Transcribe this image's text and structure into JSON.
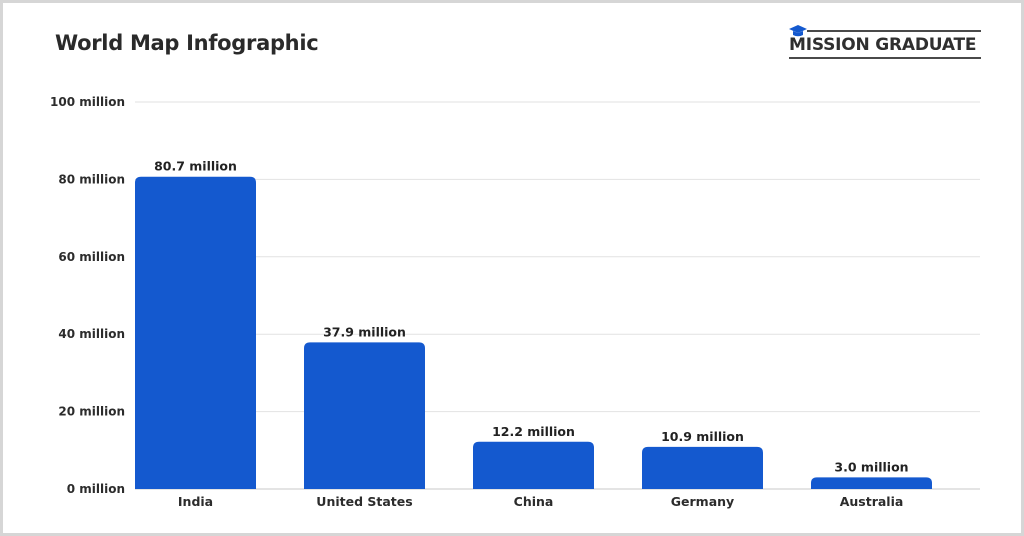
{
  "header": {
    "title": "World Map Infographic",
    "logo_text": "MISSION GRADUATE",
    "logo_icon": "graduation-cap-icon"
  },
  "colors": {
    "bar": "#1459cf",
    "grid": "#e2e2e2",
    "text": "#2c2c2c"
  },
  "chart_data": {
    "type": "bar",
    "title": "World Map Infographic",
    "categories": [
      "India",
      "United States",
      "China",
      "Germany",
      "Australia"
    ],
    "values": [
      80.7,
      37.9,
      12.2,
      10.9,
      3.0
    ],
    "data_labels": [
      "80.7 million",
      "37.9 million",
      "12.2 million",
      "10.9 million",
      "3.0 million"
    ],
    "y_ticks": [
      0,
      20,
      40,
      60,
      80,
      100
    ],
    "y_tick_labels": [
      "0 million",
      "20 million",
      "40 million",
      "60 million",
      "80 million",
      "100 million"
    ],
    "ylim": [
      0,
      100
    ],
    "grid": true,
    "legend": "none",
    "xlabel": "",
    "ylabel": ""
  }
}
